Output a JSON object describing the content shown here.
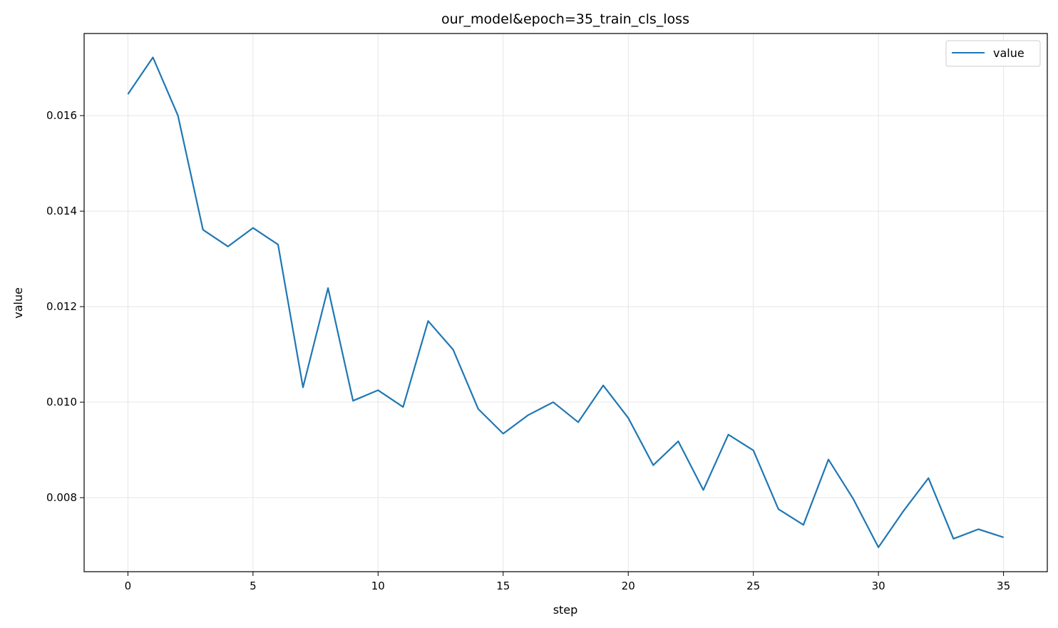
{
  "chart_data": {
    "type": "line",
    "title": "our_model&epoch=35_train_cls_loss",
    "xlabel": "step",
    "ylabel": "value",
    "xlim": [
      -1.75,
      36.75
    ],
    "ylim": [
      0.00645,
      0.01772
    ],
    "xticks": [
      0,
      5,
      10,
      15,
      20,
      25,
      30,
      35
    ],
    "yticks": [
      0.008,
      0.01,
      0.012,
      0.014,
      0.016
    ],
    "ytick_labels": [
      "0.008",
      "0.010",
      "0.012",
      "0.014",
      "0.016"
    ],
    "grid": true,
    "legend_position": "top-right",
    "series": [
      {
        "name": "value",
        "color": "#1f77b4",
        "x": [
          0,
          1,
          2,
          3,
          4,
          5,
          6,
          7,
          8,
          9,
          10,
          11,
          12,
          13,
          14,
          15,
          16,
          17,
          18,
          19,
          20,
          21,
          22,
          23,
          24,
          25,
          26,
          27,
          28,
          29,
          30,
          31,
          32,
          33,
          34,
          35
        ],
        "y": [
          0.01645,
          0.01722,
          0.016,
          0.01361,
          0.01326,
          0.01365,
          0.0133,
          0.01031,
          0.01239,
          0.01003,
          0.01025,
          0.0099,
          0.0117,
          0.0111,
          0.00986,
          0.00934,
          0.00973,
          0.01,
          0.00958,
          0.01035,
          0.00967,
          0.00868,
          0.00918,
          0.00816,
          0.00932,
          0.00899,
          0.00776,
          0.00743,
          0.0088,
          0.00797,
          0.00696,
          0.00772,
          0.00841,
          0.00714,
          0.00734,
          0.00717
        ]
      }
    ]
  }
}
